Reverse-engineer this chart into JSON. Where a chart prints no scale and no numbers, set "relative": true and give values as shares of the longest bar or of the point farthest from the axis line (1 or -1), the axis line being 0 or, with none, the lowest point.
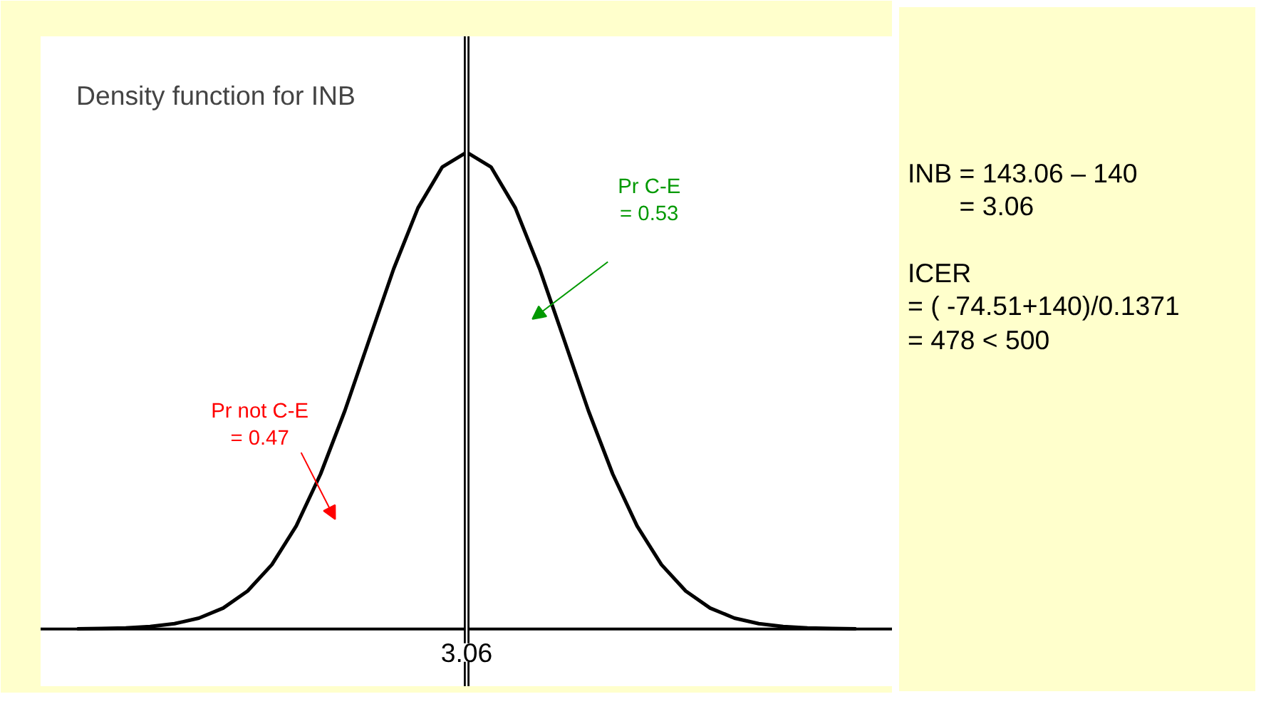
{
  "chart_data": {
    "type": "line",
    "title": "Density function for INB",
    "relative": true,
    "categories": [
      null,
      null,
      null,
      null,
      null,
      null,
      null,
      null,
      null,
      null,
      null,
      null,
      null,
      null,
      null,
      null,
      null,
      null,
      null,
      null,
      null,
      null,
      null,
      null,
      null,
      null,
      null,
      null,
      null,
      null,
      null,
      null,
      null
    ],
    "series": [
      {
        "color": "#000000",
        "values": [
          0.0003,
          0.0009,
          0.0022,
          0.0051,
          0.0111,
          0.0228,
          0.0439,
          0.0796,
          0.135,
          0.216,
          0.325,
          0.458,
          0.607,
          0.755,
          0.883,
          0.969,
          1,
          0.969,
          0.883,
          0.755,
          0.607,
          0.458,
          0.325,
          0.216,
          0.135,
          0.0796,
          0.0439,
          0.0228,
          0.0111,
          0.0051,
          0.0022,
          0.0009,
          0.0003
        ]
      }
    ],
    "annotations": [
      "Pr C-E\n= 0.53",
      "Pr not C-E\n= 0.47",
      "3.06",
      "INB = 143.06 – 140\n       = 3.06\n\nICER\n= ( -74.51+140)/0.1371\n= 478 < 500"
    ],
    "grid": false,
    "marker": "none",
    "line_style": "solid"
  }
}
